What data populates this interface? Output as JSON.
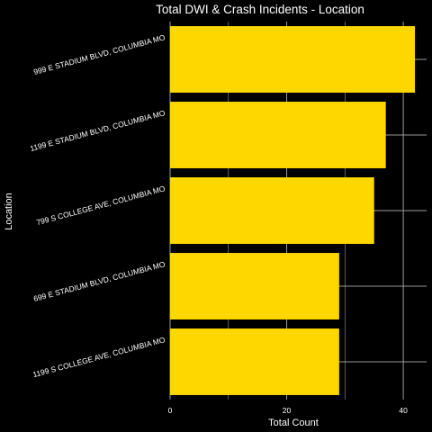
{
  "chart_data": {
    "type": "bar",
    "orientation": "horizontal",
    "title": "Total DWI & Crash Incidents - Location",
    "xlabel": "Total Count",
    "ylabel": "Location",
    "categories": [
      "999 E STADIUM BLVD, COLUMBIA MO",
      "1199 E STADIUM BLVD, COLUMBIA MO",
      "799 S COLLEGE AVE, COLUMBIA MO",
      "699 E STADIUM BLVD, COLUMBIA MO",
      "1199 S COLLEGE AVE, COLUMBIA MO"
    ],
    "values": [
      42,
      37,
      35,
      29,
      29
    ],
    "xlim": [
      0,
      44
    ],
    "xticks": [
      0,
      20,
      40
    ],
    "xtick_labels": [
      "0",
      "20",
      "40"
    ],
    "grid": true,
    "colors": {
      "background": "#000000",
      "bar": "#FFD700",
      "grid": "#9a9a9a",
      "text": "#ffffff"
    }
  }
}
